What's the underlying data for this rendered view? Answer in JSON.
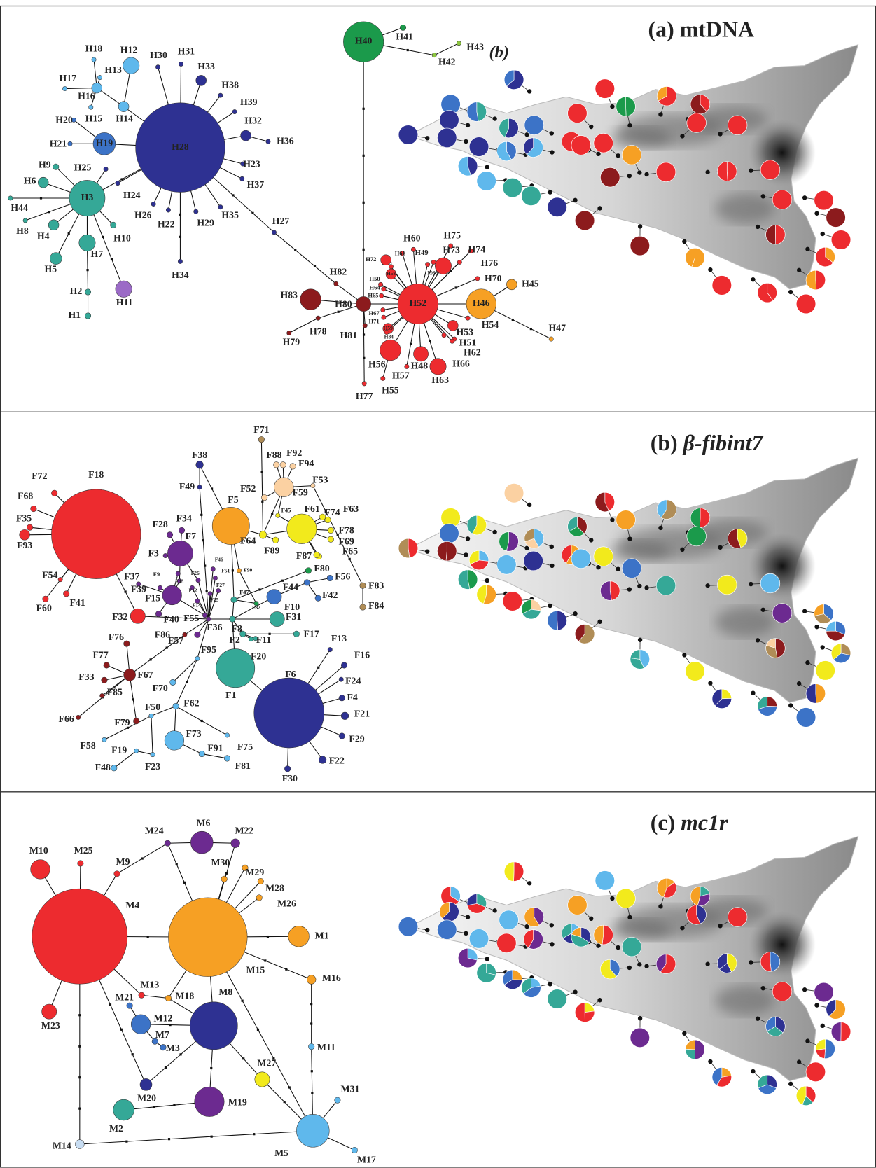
{
  "figure": {
    "panels": [
      {
        "label": "(a)",
        "gene": "mtDNA",
        "map_label": "(b)",
        "nodes": [
          "H1",
          "H2",
          "H3",
          "H4",
          "H5",
          "H6",
          "H7",
          "H8",
          "H9",
          "H10",
          "H11",
          "H12",
          "H13",
          "H14",
          "H15",
          "H16",
          "H17",
          "H18",
          "H19",
          "H20",
          "H21",
          "H22",
          "H23",
          "H24",
          "H25",
          "H26",
          "H27",
          "H28",
          "H29",
          "H30",
          "H31",
          "H32",
          "H33",
          "H34",
          "H35",
          "H36",
          "H37",
          "H38",
          "H39",
          "H40",
          "H41",
          "H42",
          "H43",
          "H44",
          "H45",
          "H46",
          "H47",
          "H48",
          "H49",
          "H50",
          "H51",
          "H52",
          "H53",
          "H54",
          "H55",
          "H56",
          "H57",
          "H58",
          "H59",
          "H60",
          "H61",
          "H62",
          "H63",
          "H64",
          "H65",
          "H66",
          "H67",
          "H68",
          "H69",
          "H70",
          "H71",
          "H72",
          "H73",
          "H74",
          "H75",
          "H76",
          "H77",
          "H78",
          "H79",
          "H80",
          "H81",
          "H82",
          "H83",
          "H84"
        ]
      },
      {
        "label": "(b)",
        "gene": "β-fibint7",
        "nodes": [
          "F1",
          "F2",
          "F3",
          "F4",
          "F5",
          "F6",
          "F7",
          "F8",
          "F9",
          "F10",
          "F11",
          "F12",
          "F13",
          "F14",
          "F15",
          "F16",
          "F17",
          "F18",
          "F19",
          "F20",
          "F21",
          "F22",
          "F23",
          "F24",
          "F25",
          "F26",
          "F27",
          "F28",
          "F29",
          "F30",
          "F31",
          "F32",
          "F33",
          "F34",
          "F35",
          "F36",
          "F37",
          "F38",
          "F39",
          "F40",
          "F41",
          "F42",
          "F43",
          "F44",
          "F45",
          "F46",
          "F47",
          "F48",
          "F49",
          "F50",
          "F51",
          "F52",
          "F53",
          "F54",
          "F55",
          "F56",
          "F57",
          "F58",
          "F59",
          "F60",
          "F61",
          "F62",
          "F63",
          "F64",
          "F65",
          "F66",
          "F67",
          "F68",
          "F69",
          "F70",
          "F71",
          "F72",
          "F73",
          "F74",
          "F75",
          "F76",
          "F77",
          "F78",
          "F79",
          "F80",
          "F81",
          "F82",
          "F83",
          "F84",
          "F85",
          "F86",
          "F87",
          "F88",
          "F89",
          "F90",
          "F91",
          "F92",
          "F93",
          "F94",
          "F95"
        ]
      },
      {
        "label": "(c)",
        "gene": "mc1r",
        "nodes": [
          "M1",
          "M2",
          "M3",
          "M4",
          "M5",
          "M6",
          "M7",
          "M8",
          "M9",
          "M10",
          "M11",
          "M12",
          "M13",
          "M14",
          "M15",
          "M16",
          "M17",
          "M18",
          "M19",
          "M20",
          "M21",
          "M22",
          "M23",
          "M24",
          "M25",
          "M26",
          "M27",
          "M28",
          "M29",
          "M30",
          "M31"
        ]
      }
    ]
  }
}
